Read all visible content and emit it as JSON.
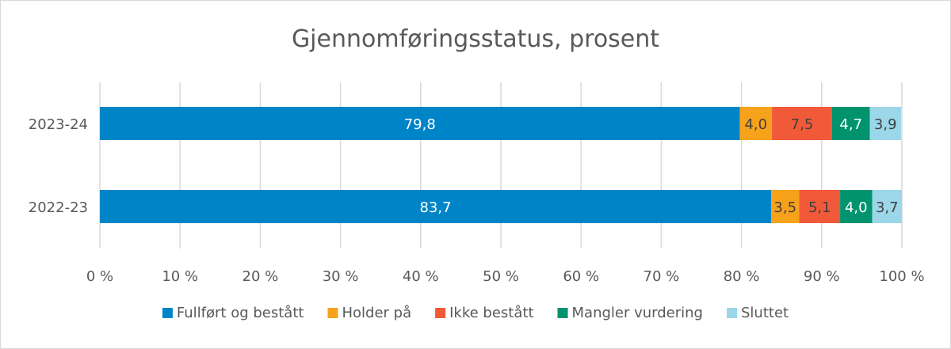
{
  "chart_data": {
    "type": "bar",
    "orientation": "horizontal",
    "stacked": true,
    "title": "Gjennomføringsstatus, prosent",
    "categories": [
      "2023-24",
      "2022-23"
    ],
    "series": [
      {
        "name": "Fullført og bestått",
        "values": [
          79.8,
          83.7
        ],
        "labels": [
          "79,8",
          "83,7"
        ],
        "color": "#0084C8",
        "label_color": "#ffffff"
      },
      {
        "name": "Holder på",
        "values": [
          4.0,
          3.5
        ],
        "labels": [
          "4,0",
          "3,5"
        ],
        "color": "#F7A21B",
        "label_color": "#404040"
      },
      {
        "name": "Ikke bestått",
        "values": [
          7.5,
          5.1
        ],
        "labels": [
          "7,5",
          "5,1"
        ],
        "color": "#F15A38",
        "label_color": "#404040"
      },
      {
        "name": "Mangler vurdering",
        "values": [
          4.7,
          4.0
        ],
        "labels": [
          "4,7",
          "4,0"
        ],
        "color": "#00936E",
        "label_color": "#ffffff"
      },
      {
        "name": "Sluttet",
        "values": [
          3.9,
          3.7
        ],
        "labels": [
          "3,9",
          "3,7"
        ],
        "color": "#9BD7E8",
        "label_color": "#404040"
      }
    ],
    "x_ticks": [
      "0 %",
      "10 %",
      "20 %",
      "30 %",
      "40 %",
      "50 %",
      "60 %",
      "70 %",
      "80 %",
      "90 %",
      "100 %"
    ],
    "xlim": [
      0,
      100
    ],
    "grid": "vertical",
    "legend_position": "bottom",
    "gridline_color": "#d9d9d9"
  }
}
